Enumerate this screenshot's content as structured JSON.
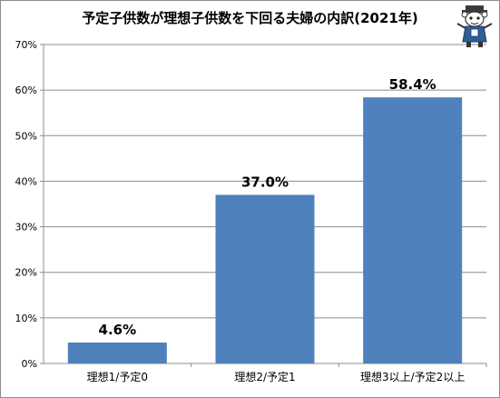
{
  "chart_data": {
    "type": "bar",
    "title": "予定子供数が理想子供数を下回る夫婦の内訳(2021年)",
    "categories": [
      "理想1/予定0",
      "理想2/予定1",
      "理想3以上/予定2以上"
    ],
    "values": [
      4.6,
      37.0,
      58.4
    ],
    "data_labels": [
      "4.6%",
      "37.0%",
      "58.4%"
    ],
    "xlabel": "",
    "ylabel": "",
    "ylim": [
      0,
      70
    ],
    "yticks": [
      0,
      10,
      20,
      30,
      40,
      50,
      60,
      70
    ],
    "ytick_labels": [
      "0%",
      "10%",
      "20%",
      "30%",
      "40%",
      "50%",
      "60%",
      "70%"
    ],
    "grid": true,
    "legend": "none",
    "bar_color": "#4f81bd"
  }
}
